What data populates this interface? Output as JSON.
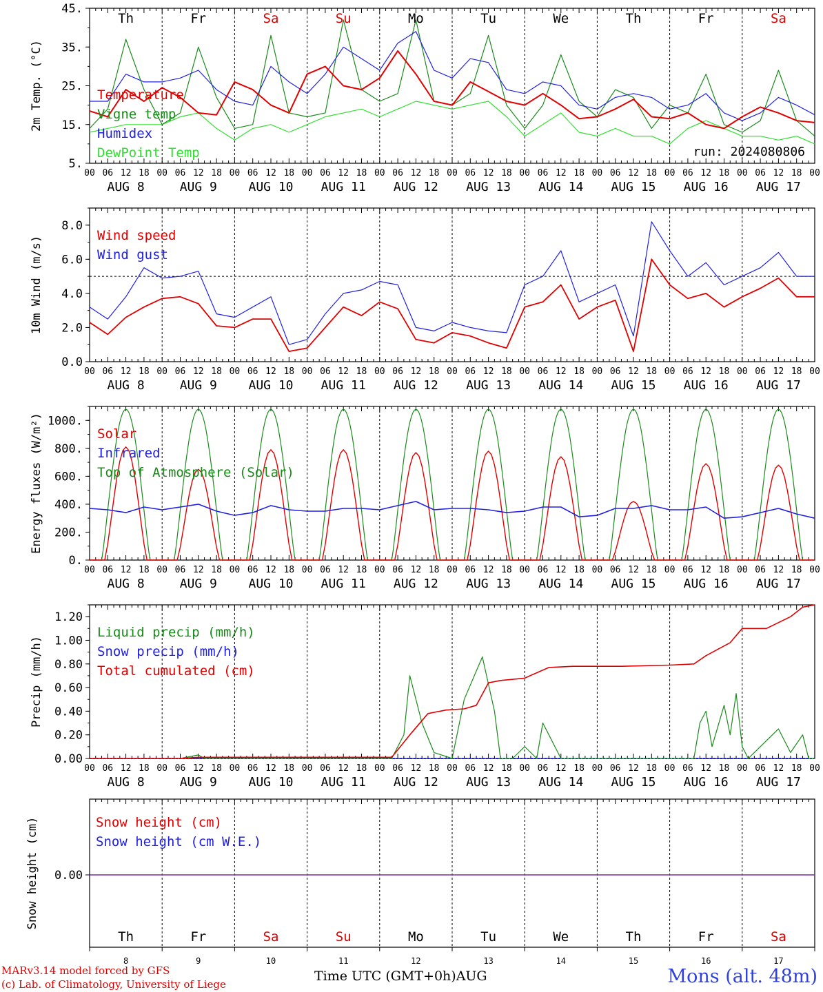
{
  "colors": {
    "temperature": "#e00000",
    "vigne": "#1a8a1a",
    "humidex": "#2020e0",
    "dewpoint": "#30e030",
    "weekend": "#e00000",
    "weekday": "#000000"
  },
  "chart_data": [
    {
      "type": "line",
      "ylabel": "2m Temp. (°C)",
      "ylim": [
        5,
        45
      ],
      "yticks": [
        "5.",
        "15.",
        "25.",
        "35.",
        "45."
      ],
      "annotation": "run: 2024080806",
      "series": [
        {
          "name": "Temperature",
          "color": "#e00000",
          "x": [
            0,
            6,
            12,
            18,
            24,
            30,
            36,
            42,
            48,
            54,
            60,
            66,
            72,
            78,
            84,
            90,
            96,
            102,
            108,
            114,
            120,
            126,
            132,
            138,
            144,
            150,
            156,
            162,
            168,
            174,
            180,
            186,
            192,
            198,
            204,
            210,
            216,
            222,
            228,
            234,
            240
          ],
          "values": [
            18.5,
            17,
            24,
            21,
            24.5,
            22,
            18,
            17.5,
            26,
            24,
            20,
            18,
            28,
            30,
            25,
            24,
            27,
            34,
            28,
            21,
            20,
            26,
            23.5,
            21,
            20,
            23,
            20,
            16.5,
            17,
            19,
            21.5,
            17,
            16.5,
            18,
            15,
            14,
            17,
            19.5,
            18,
            16,
            15.5
          ]
        },
        {
          "name": "Vigne temp",
          "color": "#1a8a1a",
          "x": [
            0,
            6,
            12,
            18,
            24,
            30,
            36,
            42,
            48,
            54,
            60,
            66,
            72,
            78,
            84,
            90,
            96,
            102,
            108,
            114,
            120,
            126,
            132,
            138,
            144,
            150,
            156,
            162,
            168,
            174,
            180,
            186,
            192,
            198,
            204,
            210,
            216,
            222,
            228,
            234,
            240
          ],
          "values": [
            14,
            19,
            37,
            24,
            15,
            18,
            35,
            22,
            14,
            15,
            38,
            18,
            17,
            18,
            42,
            24,
            21,
            23,
            42,
            21,
            20,
            23,
            38,
            20,
            14,
            20,
            33,
            21,
            17,
            24,
            22,
            14,
            20,
            18,
            28,
            15,
            13,
            16,
            29,
            16,
            12
          ]
        },
        {
          "name": "Humidex",
          "color": "#2020e0",
          "x": [
            0,
            6,
            12,
            18,
            24,
            30,
            36,
            42,
            48,
            54,
            60,
            66,
            72,
            78,
            84,
            90,
            96,
            102,
            108,
            114,
            120,
            126,
            132,
            138,
            144,
            150,
            156,
            162,
            168,
            174,
            180,
            186,
            192,
            198,
            204,
            210,
            216,
            222,
            228,
            234,
            240
          ],
          "values": [
            21,
            21,
            28,
            26,
            26,
            27,
            29,
            24,
            21,
            20,
            30,
            26,
            23,
            28,
            35,
            32,
            29,
            36,
            39,
            29,
            27,
            32,
            31,
            24,
            23,
            26,
            25,
            20,
            19,
            22,
            23,
            22,
            19,
            20,
            23,
            18,
            16,
            18,
            22,
            20,
            17.5
          ]
        },
        {
          "name": "DewPoint Temp",
          "color": "#30e030",
          "x": [
            0,
            6,
            12,
            18,
            24,
            30,
            36,
            42,
            48,
            54,
            60,
            66,
            72,
            78,
            84,
            90,
            96,
            102,
            108,
            114,
            120,
            126,
            132,
            138,
            144,
            150,
            156,
            162,
            168,
            174,
            180,
            186,
            192,
            198,
            204,
            210,
            216,
            222,
            228,
            234,
            240
          ],
          "values": [
            13,
            14,
            15,
            15,
            15,
            17,
            18,
            14,
            11,
            14,
            15,
            13,
            15,
            17,
            18,
            19,
            17,
            19,
            21,
            20,
            19,
            20,
            21,
            17,
            12,
            15,
            18,
            13,
            12,
            14,
            12,
            12,
            10,
            14,
            16,
            14,
            12,
            12,
            11,
            12,
            10
          ]
        }
      ]
    },
    {
      "type": "line",
      "ylabel": "10m Wind (m/s)",
      "ylim": [
        0,
        9
      ],
      "yticks": [
        "0.0",
        "2.0",
        "4.0",
        "6.0",
        "8.0"
      ],
      "reference_line": 5,
      "series": [
        {
          "name": "Wind speed",
          "color": "#e00000",
          "x": [
            0,
            6,
            12,
            18,
            24,
            30,
            36,
            42,
            48,
            54,
            60,
            66,
            72,
            78,
            84,
            90,
            96,
            102,
            108,
            114,
            120,
            126,
            132,
            138,
            144,
            150,
            156,
            162,
            168,
            174,
            180,
            186,
            192,
            198,
            204,
            210,
            216,
            222,
            228,
            234,
            240
          ],
          "values": [
            2.3,
            1.6,
            2.6,
            3.2,
            3.7,
            3.8,
            3.4,
            2.1,
            2.0,
            2.5,
            2.5,
            0.6,
            0.8,
            2.0,
            3.2,
            2.7,
            3.5,
            3.1,
            1.3,
            1.1,
            1.7,
            1.5,
            1.1,
            0.8,
            3.2,
            3.5,
            4.5,
            2.5,
            3.2,
            3.6,
            0.6,
            6.0,
            4.5,
            3.7,
            4.0,
            3.2,
            3.8,
            4.3,
            4.9,
            3.8,
            3.8
          ]
        },
        {
          "name": "Wind gust",
          "color": "#2020e0",
          "x": [
            0,
            6,
            12,
            18,
            24,
            30,
            36,
            42,
            48,
            54,
            60,
            66,
            72,
            78,
            84,
            90,
            96,
            102,
            108,
            114,
            120,
            126,
            132,
            138,
            144,
            150,
            156,
            162,
            168,
            174,
            180,
            186,
            192,
            198,
            204,
            210,
            216,
            222,
            228,
            234,
            240
          ],
          "values": [
            3.2,
            2.5,
            3.8,
            5.5,
            4.9,
            5.0,
            5.3,
            2.8,
            2.6,
            3.2,
            3.8,
            1.0,
            1.3,
            2.8,
            4.0,
            4.2,
            4.7,
            4.5,
            2.0,
            1.8,
            2.3,
            2.0,
            1.8,
            1.7,
            4.5,
            5.0,
            6.5,
            3.5,
            4.0,
            4.5,
            1.5,
            8.2,
            6.5,
            5.0,
            5.8,
            4.5,
            5.0,
            5.5,
            6.4,
            5.0,
            5.0
          ]
        }
      ]
    },
    {
      "type": "line",
      "ylabel": "Energy fluxes (W/m²)",
      "ylim": [
        0,
        1100
      ],
      "yticks": [
        "0.",
        "200.",
        "400.",
        "600.",
        "800.",
        "1000."
      ],
      "series": [
        {
          "name": "Solar",
          "color": "#e00000",
          "peaks": [
            810,
            650,
            790,
            790,
            770,
            780,
            740,
            420,
            690,
            680
          ]
        },
        {
          "name": "Infrared",
          "color": "#2020e0",
          "x": [
            0,
            6,
            12,
            18,
            24,
            30,
            36,
            42,
            48,
            54,
            60,
            66,
            72,
            78,
            84,
            90,
            96,
            102,
            108,
            114,
            120,
            126,
            132,
            138,
            144,
            150,
            156,
            162,
            168,
            174,
            180,
            186,
            192,
            198,
            204,
            210,
            216,
            222,
            228,
            234,
            240
          ],
          "values": [
            370,
            360,
            340,
            380,
            360,
            380,
            400,
            350,
            320,
            340,
            390,
            360,
            350,
            350,
            370,
            370,
            360,
            390,
            420,
            360,
            370,
            370,
            360,
            340,
            350,
            380,
            380,
            310,
            320,
            370,
            370,
            390,
            360,
            360,
            380,
            300,
            310,
            340,
            370,
            330,
            300
          ]
        },
        {
          "name": "Top of Atmosphere (Solar)",
          "color": "#1a8a1a",
          "peak": 1080
        }
      ]
    },
    {
      "type": "line",
      "ylabel": "Precip (mm/h)",
      "ylim": [
        0,
        1.3
      ],
      "yticks": [
        "0.00",
        "0.20",
        "0.40",
        "0.60",
        "0.80",
        "1.00",
        "1.20"
      ],
      "series": [
        {
          "name": "Liquid precip (mm/h)",
          "color": "#1a8a1a",
          "x": [
            0,
            30,
            36,
            38,
            100,
            104,
            106,
            110,
            114,
            120,
            124,
            130,
            134,
            136,
            140,
            144,
            148,
            150,
            152,
            156,
            160,
            200,
            202,
            204,
            206,
            210,
            212,
            214,
            216,
            218,
            222,
            228,
            232,
            236,
            238,
            240
          ],
          "values": [
            0,
            0,
            0.03,
            0,
            0,
            0.2,
            0.7,
            0.3,
            0.05,
            0,
            0.5,
            0.86,
            0.4,
            0,
            0,
            0.1,
            0,
            0.3,
            0.2,
            0,
            0,
            0,
            0.3,
            0.4,
            0.1,
            0.45,
            0.2,
            0.55,
            0.1,
            0,
            0.1,
            0.25,
            0.05,
            0.2,
            0,
            0
          ]
        },
        {
          "name": "Snow precip (mm/h)",
          "color": "#2020e0",
          "x": [
            0,
            240
          ],
          "values": [
            0,
            0
          ]
        },
        {
          "name": "Total cumulated (cm)",
          "color": "#e00000",
          "x": [
            0,
            30,
            36,
            100,
            106,
            112,
            118,
            124,
            128,
            132,
            136,
            144,
            152,
            160,
            176,
            192,
            200,
            204,
            212,
            216,
            224,
            232,
            236,
            240
          ],
          "values": [
            0,
            0,
            0.01,
            0.01,
            0.2,
            0.38,
            0.41,
            0.42,
            0.45,
            0.64,
            0.66,
            0.68,
            0.77,
            0.78,
            0.78,
            0.79,
            0.8,
            0.87,
            0.98,
            1.1,
            1.1,
            1.2,
            1.28,
            1.3
          ]
        }
      ]
    },
    {
      "type": "line",
      "ylabel": "Snow height (cm)",
      "yticks": [
        "0.00"
      ],
      "series": [
        {
          "name": "Snow height (cm)",
          "color": "#e00000",
          "x": [
            0,
            240
          ],
          "values": [
            0,
            0
          ]
        },
        {
          "name": "Snow height (cm W.E.)",
          "color": "#2020e0",
          "x": [
            0,
            240
          ],
          "values": [
            0,
            0
          ]
        }
      ]
    }
  ],
  "days": [
    {
      "abbr": "Th",
      "date": "AUG 8",
      "num": "8",
      "weekend": false
    },
    {
      "abbr": "Fr",
      "date": "AUG 9",
      "num": "9",
      "weekend": false
    },
    {
      "abbr": "Sa",
      "date": "AUG 10",
      "num": "10",
      "weekend": true
    },
    {
      "abbr": "Su",
      "date": "AUG 11",
      "num": "11",
      "weekend": true
    },
    {
      "abbr": "Mo",
      "date": "AUG 12",
      "num": "12",
      "weekend": false
    },
    {
      "abbr": "Tu",
      "date": "AUG 13",
      "num": "13",
      "weekend": false
    },
    {
      "abbr": "We",
      "date": "AUG 14",
      "num": "14",
      "weekend": false
    },
    {
      "abbr": "Th",
      "date": "AUG 15",
      "num": "15",
      "weekend": false
    },
    {
      "abbr": "Fr",
      "date": "AUG 16",
      "num": "16",
      "weekend": false
    },
    {
      "abbr": "Sa",
      "date": "AUG 17",
      "num": "17",
      "weekend": true
    }
  ],
  "hour_labels": [
    "00",
    "06",
    "12",
    "18"
  ],
  "final_hour_label": "00",
  "footer": {
    "model": "MARv3.14 model forced by GFS",
    "copyright": "(c) Lab. of Climatology, University of Liege",
    "time_axis": "Time UTC (GMT+0h)AUG",
    "station": "Mons (alt. 48m)"
  }
}
